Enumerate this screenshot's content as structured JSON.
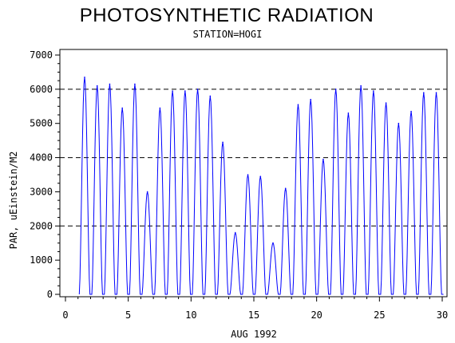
{
  "chart_data": {
    "type": "line",
    "title": "PHOTOSYNTHETIC RADIATION",
    "subtitle": "STATION=HOGI",
    "xlabel": "AUG 1992",
    "ylabel": "PAR, uEinstein/M2",
    "xlim": [
      0,
      30
    ],
    "ylim": [
      0,
      7000
    ],
    "x_ticks": [
      0,
      5,
      10,
      15,
      20,
      25,
      30
    ],
    "y_ticks": [
      0,
      1000,
      2000,
      3000,
      4000,
      5000,
      6000,
      7000
    ],
    "reference_lines_y": [
      2000,
      4000,
      6000
    ],
    "grid": false,
    "series": [
      {
        "color": "#0000ff",
        "daily_peaks": [
          {
            "day": 1,
            "peak": 6350
          },
          {
            "day": 2,
            "peak": 6100
          },
          {
            "day": 3,
            "peak": 6150
          },
          {
            "day": 4,
            "peak": 5450
          },
          {
            "day": 5,
            "peak": 6150
          },
          {
            "day": 6,
            "peak": 3000
          },
          {
            "day": 7,
            "peak": 5450
          },
          {
            "day": 8,
            "peak": 5950
          },
          {
            "day": 9,
            "peak": 5950
          },
          {
            "day": 10,
            "peak": 6000
          },
          {
            "day": 11,
            "peak": 5800
          },
          {
            "day": 12,
            "peak": 4450
          },
          {
            "day": 13,
            "peak": 1800
          },
          {
            "day": 14,
            "peak": 3500
          },
          {
            "day": 15,
            "peak": 3450
          },
          {
            "day": 16,
            "peak": 1500
          },
          {
            "day": 17,
            "peak": 3100
          },
          {
            "day": 18,
            "peak": 5550
          },
          {
            "day": 19,
            "peak": 5700
          },
          {
            "day": 20,
            "peak": 3950
          },
          {
            "day": 21,
            "peak": 6000
          },
          {
            "day": 22,
            "peak": 5300
          },
          {
            "day": 23,
            "peak": 6100
          },
          {
            "day": 24,
            "peak": 5950
          },
          {
            "day": 25,
            "peak": 5600
          },
          {
            "day": 26,
            "peak": 5000
          },
          {
            "day": 27,
            "peak": 5350
          },
          {
            "day": 28,
            "peak": 5900
          },
          {
            "day": 29,
            "peak": 5900
          }
        ]
      }
    ]
  }
}
